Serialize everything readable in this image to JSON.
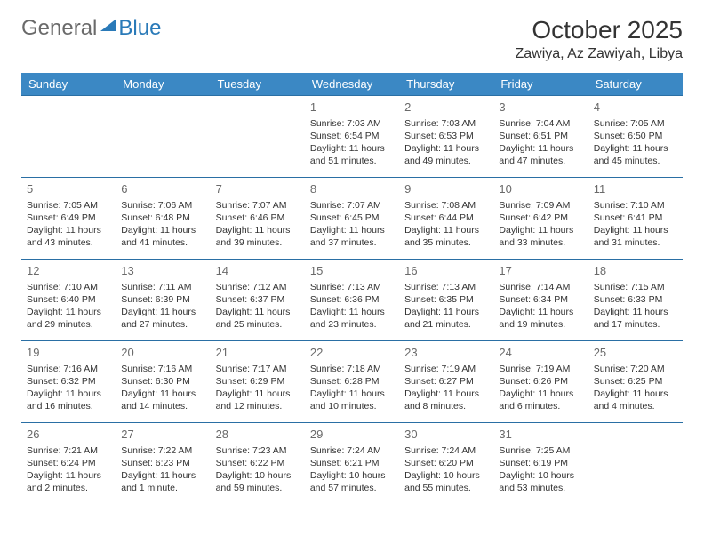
{
  "logo": {
    "text1": "General",
    "text2": "Blue"
  },
  "title": "October 2025",
  "location": "Zawiya, Az Zawiyah, Libya",
  "colors": {
    "header_bg": "#3b88c4",
    "row_border": "#2a6fa4",
    "logo_gray": "#6a6a6a",
    "logo_blue": "#2a7ab8"
  },
  "days_of_week": [
    "Sunday",
    "Monday",
    "Tuesday",
    "Wednesday",
    "Thursday",
    "Friday",
    "Saturday"
  ],
  "weeks": [
    [
      null,
      null,
      null,
      {
        "n": "1",
        "sunrise": "7:03 AM",
        "sunset": "6:54 PM",
        "daylight": "11 hours and 51 minutes."
      },
      {
        "n": "2",
        "sunrise": "7:03 AM",
        "sunset": "6:53 PM",
        "daylight": "11 hours and 49 minutes."
      },
      {
        "n": "3",
        "sunrise": "7:04 AM",
        "sunset": "6:51 PM",
        "daylight": "11 hours and 47 minutes."
      },
      {
        "n": "4",
        "sunrise": "7:05 AM",
        "sunset": "6:50 PM",
        "daylight": "11 hours and 45 minutes."
      }
    ],
    [
      {
        "n": "5",
        "sunrise": "7:05 AM",
        "sunset": "6:49 PM",
        "daylight": "11 hours and 43 minutes."
      },
      {
        "n": "6",
        "sunrise": "7:06 AM",
        "sunset": "6:48 PM",
        "daylight": "11 hours and 41 minutes."
      },
      {
        "n": "7",
        "sunrise": "7:07 AM",
        "sunset": "6:46 PM",
        "daylight": "11 hours and 39 minutes."
      },
      {
        "n": "8",
        "sunrise": "7:07 AM",
        "sunset": "6:45 PM",
        "daylight": "11 hours and 37 minutes."
      },
      {
        "n": "9",
        "sunrise": "7:08 AM",
        "sunset": "6:44 PM",
        "daylight": "11 hours and 35 minutes."
      },
      {
        "n": "10",
        "sunrise": "7:09 AM",
        "sunset": "6:42 PM",
        "daylight": "11 hours and 33 minutes."
      },
      {
        "n": "11",
        "sunrise": "7:10 AM",
        "sunset": "6:41 PM",
        "daylight": "11 hours and 31 minutes."
      }
    ],
    [
      {
        "n": "12",
        "sunrise": "7:10 AM",
        "sunset": "6:40 PM",
        "daylight": "11 hours and 29 minutes."
      },
      {
        "n": "13",
        "sunrise": "7:11 AM",
        "sunset": "6:39 PM",
        "daylight": "11 hours and 27 minutes."
      },
      {
        "n": "14",
        "sunrise": "7:12 AM",
        "sunset": "6:37 PM",
        "daylight": "11 hours and 25 minutes."
      },
      {
        "n": "15",
        "sunrise": "7:13 AM",
        "sunset": "6:36 PM",
        "daylight": "11 hours and 23 minutes."
      },
      {
        "n": "16",
        "sunrise": "7:13 AM",
        "sunset": "6:35 PM",
        "daylight": "11 hours and 21 minutes."
      },
      {
        "n": "17",
        "sunrise": "7:14 AM",
        "sunset": "6:34 PM",
        "daylight": "11 hours and 19 minutes."
      },
      {
        "n": "18",
        "sunrise": "7:15 AM",
        "sunset": "6:33 PM",
        "daylight": "11 hours and 17 minutes."
      }
    ],
    [
      {
        "n": "19",
        "sunrise": "7:16 AM",
        "sunset": "6:32 PM",
        "daylight": "11 hours and 16 minutes."
      },
      {
        "n": "20",
        "sunrise": "7:16 AM",
        "sunset": "6:30 PM",
        "daylight": "11 hours and 14 minutes."
      },
      {
        "n": "21",
        "sunrise": "7:17 AM",
        "sunset": "6:29 PM",
        "daylight": "11 hours and 12 minutes."
      },
      {
        "n": "22",
        "sunrise": "7:18 AM",
        "sunset": "6:28 PM",
        "daylight": "11 hours and 10 minutes."
      },
      {
        "n": "23",
        "sunrise": "7:19 AM",
        "sunset": "6:27 PM",
        "daylight": "11 hours and 8 minutes."
      },
      {
        "n": "24",
        "sunrise": "7:19 AM",
        "sunset": "6:26 PM",
        "daylight": "11 hours and 6 minutes."
      },
      {
        "n": "25",
        "sunrise": "7:20 AM",
        "sunset": "6:25 PM",
        "daylight": "11 hours and 4 minutes."
      }
    ],
    [
      {
        "n": "26",
        "sunrise": "7:21 AM",
        "sunset": "6:24 PM",
        "daylight": "11 hours and 2 minutes."
      },
      {
        "n": "27",
        "sunrise": "7:22 AM",
        "sunset": "6:23 PM",
        "daylight": "11 hours and 1 minute."
      },
      {
        "n": "28",
        "sunrise": "7:23 AM",
        "sunset": "6:22 PM",
        "daylight": "10 hours and 59 minutes."
      },
      {
        "n": "29",
        "sunrise": "7:24 AM",
        "sunset": "6:21 PM",
        "daylight": "10 hours and 57 minutes."
      },
      {
        "n": "30",
        "sunrise": "7:24 AM",
        "sunset": "6:20 PM",
        "daylight": "10 hours and 55 minutes."
      },
      {
        "n": "31",
        "sunrise": "7:25 AM",
        "sunset": "6:19 PM",
        "daylight": "10 hours and 53 minutes."
      },
      null
    ]
  ],
  "labels": {
    "sunrise": "Sunrise:",
    "sunset": "Sunset:",
    "daylight": "Daylight:"
  }
}
